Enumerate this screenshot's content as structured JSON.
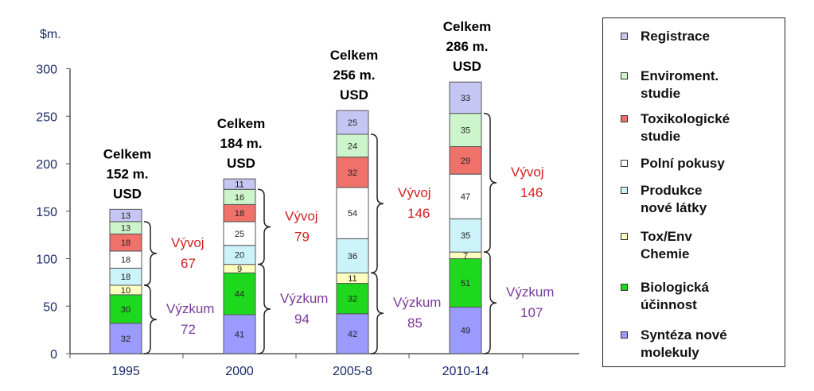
{
  "chart_data": {
    "type": "bar",
    "stacked": true,
    "ylabel": "$m.",
    "ylim": [
      0,
      300
    ],
    "yticks": [
      0,
      50,
      100,
      150,
      200,
      250,
      300
    ],
    "categories": [
      "1995",
      "2000",
      "2005-8",
      "2010-14"
    ],
    "series": [
      {
        "name": "Syntéza nové molekuly",
        "color": "#9a9aff",
        "values": [
          32,
          41,
          42,
          49
        ]
      },
      {
        "name": "Biologická účinnost",
        "color": "#1ed81e",
        "values": [
          30,
          44,
          32,
          51
        ]
      },
      {
        "name": "Tox/Env Chemie",
        "color": "#ffffc0",
        "values": [
          10,
          9,
          11,
          7
        ]
      },
      {
        "name": "Produkce nové látky",
        "color": "#ccf2fa",
        "values": [
          18,
          20,
          36,
          35
        ]
      },
      {
        "name": "Polní pokusy",
        "color": "#ffffff",
        "values": [
          18,
          25,
          54,
          47
        ]
      },
      {
        "name": "Toxikologické studie",
        "color": "#f0706a",
        "values": [
          18,
          18,
          32,
          29
        ]
      },
      {
        "name": "Enviroment. studie",
        "color": "#ccf5cc",
        "values": [
          13,
          16,
          24,
          35
        ]
      },
      {
        "name": "Registrace",
        "color": "#c6c6f4",
        "values": [
          13,
          11,
          25,
          33
        ]
      }
    ],
    "totals": [
      [
        "Celkem",
        "152 m.",
        "USD"
      ],
      [
        "Celkem",
        "184 m.",
        "USD"
      ],
      [
        "Celkem",
        "256 m.",
        "USD"
      ],
      [
        "Celkem",
        "286 m.",
        "USD"
      ]
    ],
    "annotations": {
      "vyvoj": {
        "label": "Vývoj",
        "color": "#d42020",
        "values": [
          "67",
          "79",
          "146",
          "146"
        ]
      },
      "vyzkum": {
        "label": "Výzkum",
        "color": "#7a3a9a",
        "values": [
          "72",
          "94",
          "85",
          "107"
        ]
      }
    }
  },
  "legend": [
    {
      "label": "Registrace",
      "color": "#c6c6f4"
    },
    {
      "label": "Enviroment.\nstudie",
      "color": "#ccf5cc"
    },
    {
      "label": "Toxikologické\nstudie",
      "color": "#f0706a"
    },
    {
      "label": "Polní pokusy",
      "color": "#ffffff"
    },
    {
      "label": "Produkce\nnové látky",
      "color": "#ccf2fa"
    },
    {
      "label": "Tox/Env\nChemie",
      "color": "#ffffc0"
    },
    {
      "label": "Biologická\núčinnost",
      "color": "#1ed81e"
    },
    {
      "label": "Syntéza nové\nmolekuly",
      "color": "#9a9aff"
    }
  ]
}
